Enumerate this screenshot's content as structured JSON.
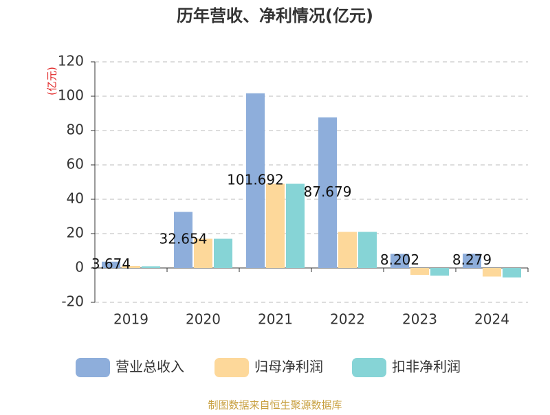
{
  "chart_data": {
    "type": "bar",
    "title": "历年营收、净利情况(亿元)",
    "y_label": "(亿元)",
    "categories": [
      "2019",
      "2020",
      "2021",
      "2022",
      "2023",
      "2024"
    ],
    "series": [
      {
        "name": "营业总收入",
        "color": "#8eaedb",
        "values": [
          3.674,
          32.654,
          101.692,
          87.679,
          8.202,
          8.279
        ],
        "show_labels": true
      },
      {
        "name": "归母净利润",
        "color": "#fdd89a",
        "values": [
          1.2,
          17,
          49,
          21,
          -4,
          -5
        ]
      },
      {
        "name": "扣非净利润",
        "color": "#86d4d6",
        "values": [
          1,
          17,
          49,
          21,
          -4.5,
          -5.5
        ]
      }
    ],
    "ylim": [
      -20,
      120
    ],
    "yticks": [
      -20,
      0,
      20,
      40,
      60,
      80,
      100,
      120
    ],
    "grid": true,
    "source": "制图数据来自恒生聚源数据库"
  }
}
